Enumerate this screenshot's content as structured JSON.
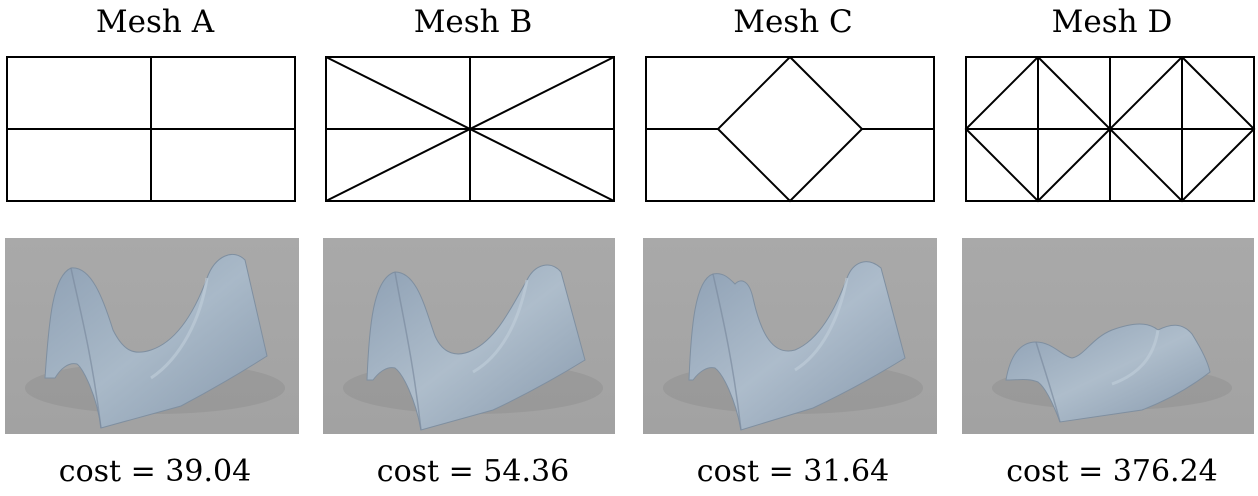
{
  "panels": [
    {
      "title": "Mesh A",
      "cost": "cost = 39.04"
    },
    {
      "title": "Mesh B",
      "cost": "cost = 54.36"
    },
    {
      "title": "Mesh C",
      "cost": "cost = 31.64"
    },
    {
      "title": "Mesh D",
      "cost": "cost = 376.24"
    }
  ],
  "colors": {
    "background": "#ffffff",
    "mesh_line": "#000000",
    "render_background": "#a7a7a7",
    "surface": "#9eafc0"
  }
}
